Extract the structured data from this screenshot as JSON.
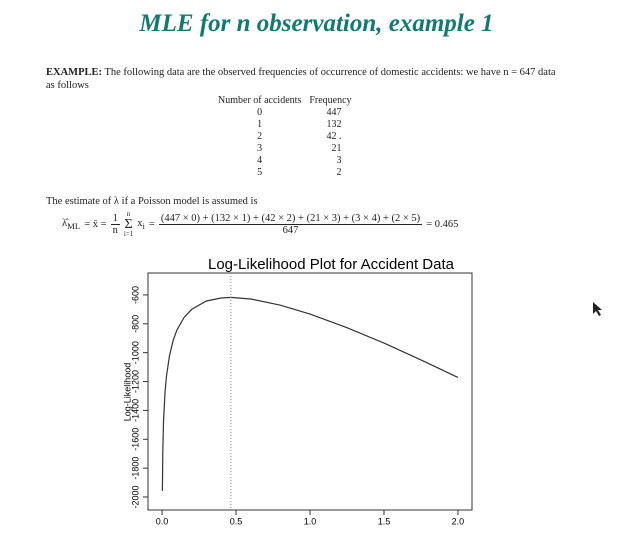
{
  "title": "MLE for n observation, example 1",
  "intro": {
    "label": "EXAMPLE:",
    "text": "The following data are the observed frequencies of occurrence of domestic accidents: we have n = 647 data as follows"
  },
  "table": {
    "header": [
      "Number of accidents",
      "Frequency"
    ],
    "rows": [
      [
        "0",
        "447"
      ],
      [
        "1",
        "132"
      ],
      [
        "2",
        "42 ."
      ],
      [
        "3",
        "21"
      ],
      [
        "4",
        "3"
      ],
      [
        "5",
        "2"
      ]
    ]
  },
  "estimate_text": "The estimate of λ if a Poisson model is assumed is",
  "formula": {
    "lhs": "λ̂",
    "lhs_sub": "ML",
    "eq1": "= x̄ =",
    "one": "1",
    "n": "n",
    "sum_top": "n",
    "sum": "Σ",
    "sum_bottom": "i=1",
    "x": "x",
    "x_sub": "i",
    "eq2": "=",
    "numerator": "(447 × 0) + (132 × 1) + (42 × 2) + (21 × 3) + (3 × 4) + (2 × 5)",
    "denominator": "647",
    "result": "= 0.465"
  },
  "chart_data": {
    "type": "line",
    "title": "Log-Likelihood Plot for Accident Data",
    "y_label": "Log-Likelihood",
    "color": "#333333",
    "x": [
      0.002,
      0.005,
      0.01,
      0.02,
      0.03,
      0.05,
      0.075,
      0.1,
      0.15,
      0.2,
      0.3,
      0.4,
      0.465,
      0.6,
      0.8,
      1.0,
      1.25,
      1.5,
      1.75,
      2.0
    ],
    "y": [
      -1958,
      -1684,
      -1479,
      -1276,
      -1161,
      -1020,
      -914,
      -844,
      -754,
      -700,
      -642,
      -621,
      -617,
      -628,
      -671,
      -733,
      -827,
      -934,
      -1050,
      -1171
    ],
    "vline": 0.465,
    "xlim": [
      -0.095,
      2.095
    ],
    "ylim": [
      -2090,
      -448
    ],
    "xticks": [
      {
        "value": 0,
        "label": "0.0"
      },
      0.5,
      {
        "value": 1,
        "label": "1.0"
      },
      1.5,
      {
        "value": 2,
        "label": "2.0"
      }
    ],
    "yticks": [
      -2000,
      -1800,
      -1600,
      -1400,
      -1200,
      -1000,
      -800,
      -600
    ]
  }
}
